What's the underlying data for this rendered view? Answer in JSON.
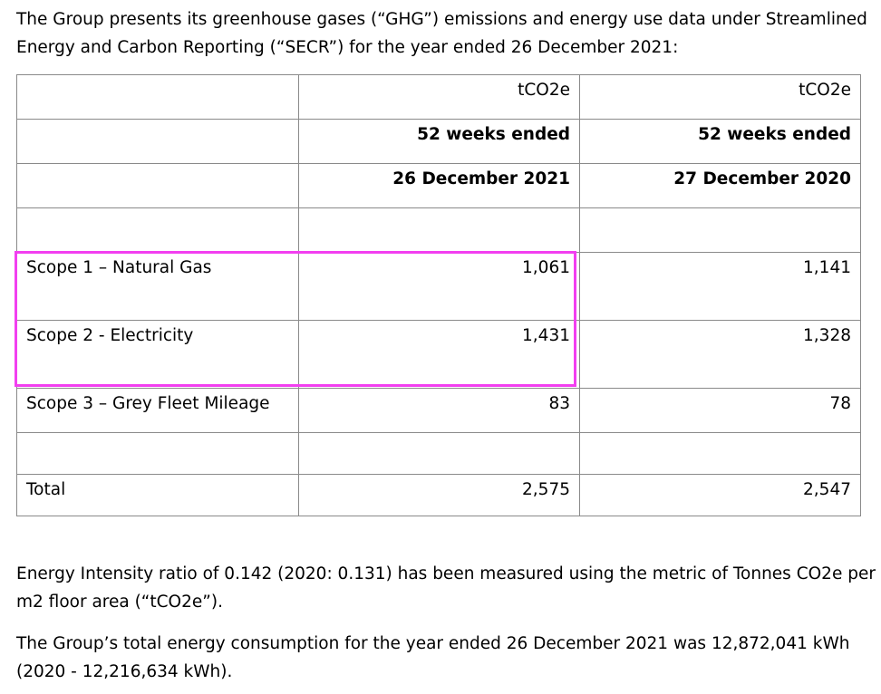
{
  "intro": {
    "line1": "The Group presents its greenhouse gases (“GHG”) emissions and energy use data under Streamlined",
    "line2": "Energy and Carbon Reporting (“SECR”) for the year ended 26 December 2021:"
  },
  "table": {
    "header_rows": [
      {
        "label": "",
        "col1": "tCO2e",
        "col2": "tCO2e"
      },
      {
        "label": "",
        "col1": "52 weeks ended",
        "col2": "52 weeks ended"
      },
      {
        "label": "",
        "col1": "26 December 2021",
        "col2": "27 December 2020"
      }
    ],
    "rows": [
      {
        "label": "",
        "col1": "",
        "col2": ""
      },
      {
        "label": "Scope 1 – Natural Gas",
        "col1": "1,061",
        "col2": "1,141"
      },
      {
        "label": "Scope 2 - Electricity",
        "col1": "1,431",
        "col2": "1,328"
      },
      {
        "label": "Scope 3 – Grey Fleet Mileage",
        "col1": "83",
        "col2": "78"
      },
      {
        "label": "",
        "col1": "",
        "col2": ""
      },
      {
        "label": "Total",
        "col1": "2,575",
        "col2": "2,547"
      }
    ]
  },
  "highlight": {
    "color": "#f23ff0"
  },
  "intensity": {
    "line1": "Energy Intensity ratio of 0.142 (2020: 0.131) has been measured using the metric of Tonnes CO2e per",
    "line2": "m2 floor area (“tCO2e”)."
  },
  "consumption": {
    "line1": "The Group’s total energy consumption for the year ended 26 December 2021 was 12,872,041 kWh",
    "line2": "(2020 - 12,216,634 kWh)."
  }
}
